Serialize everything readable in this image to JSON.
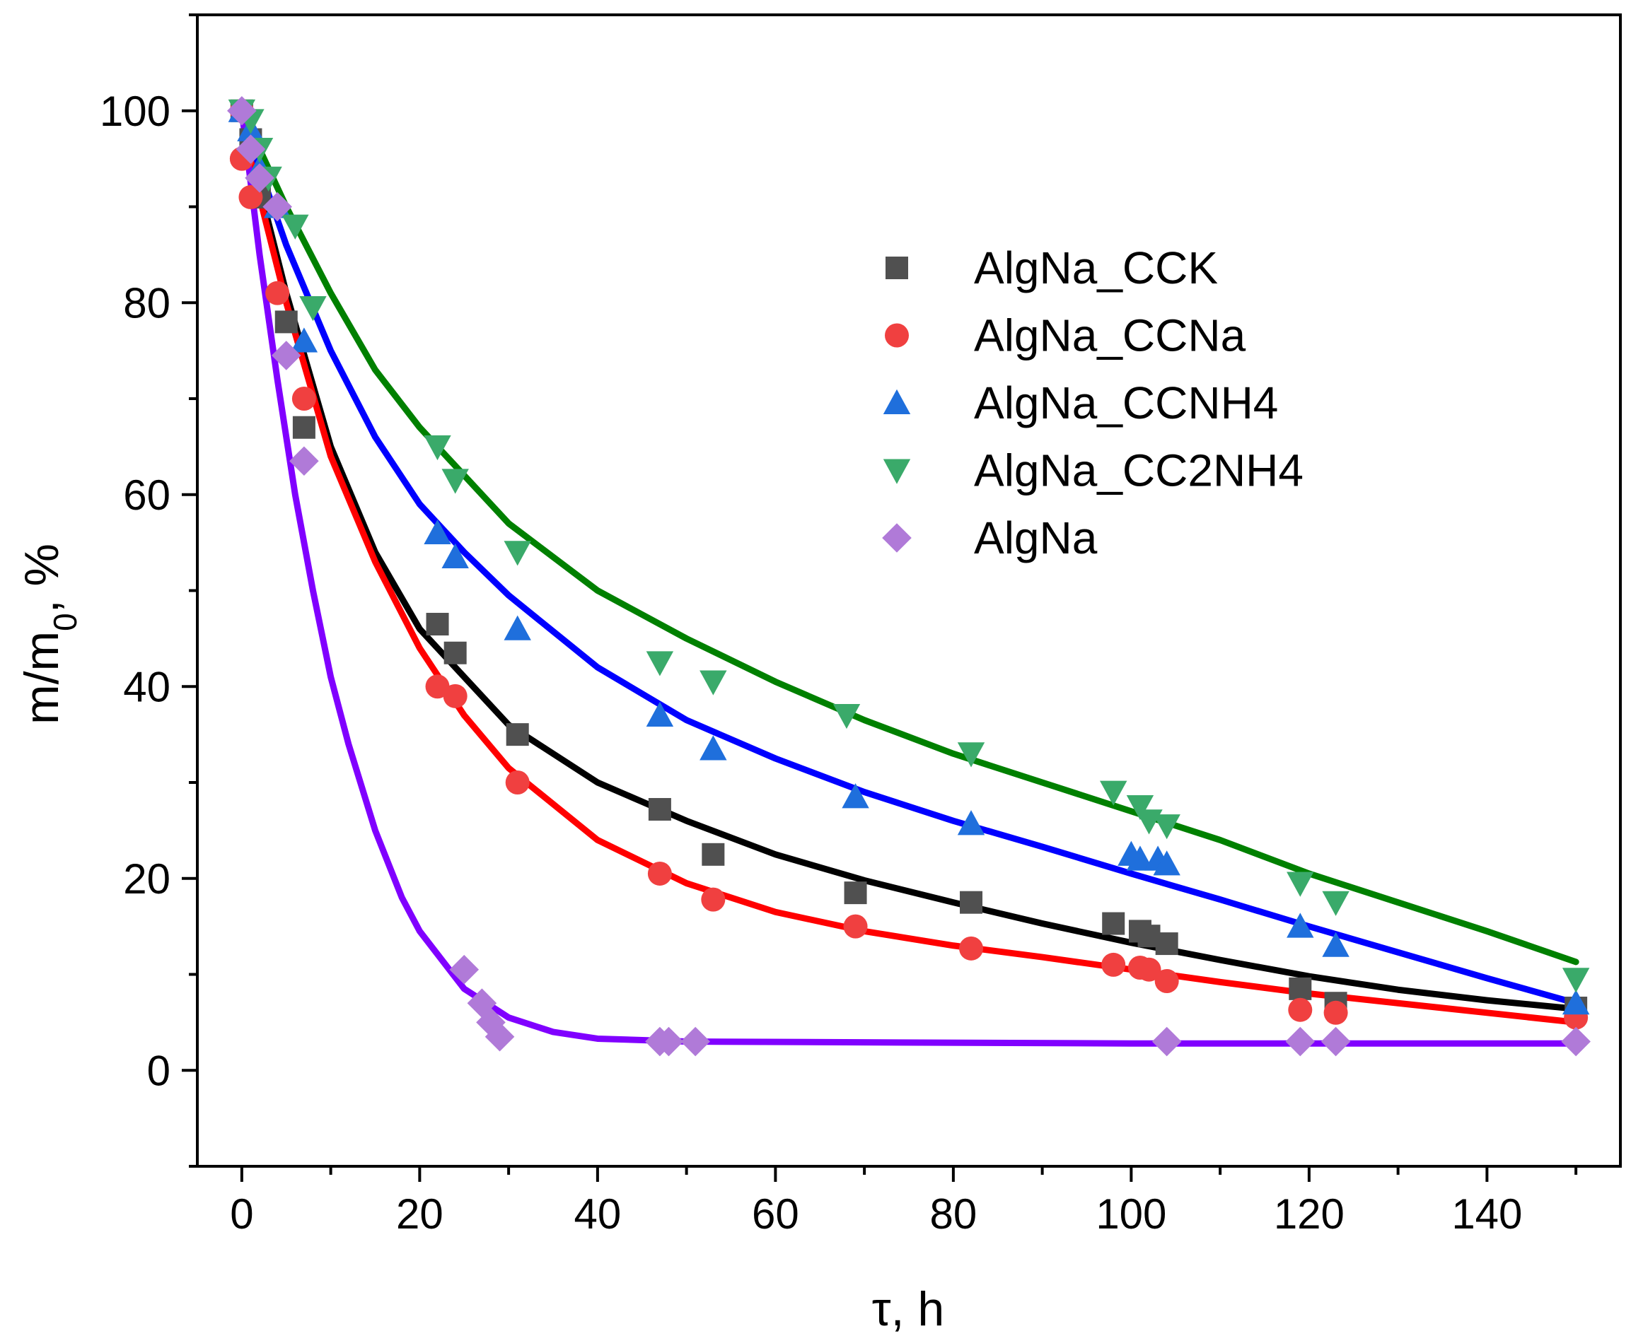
{
  "chart_data": {
    "type": "scatter",
    "title": "",
    "xlabel": "τ, h",
    "ylabel_main": "m/m",
    "ylabel_sub": "0",
    "ylabel_tail": ", %",
    "xlim": [
      -5,
      155
    ],
    "ylim": [
      -10,
      110
    ],
    "xticks": [
      0,
      20,
      40,
      60,
      80,
      100,
      120,
      140
    ],
    "yticks": [
      0,
      20,
      40,
      60,
      80,
      100
    ],
    "grid": false,
    "legend_position": "top-right",
    "series": [
      {
        "name": "AlgNa_CCK",
        "marker": "square",
        "color": "#505050",
        "fit_color": "#000000",
        "x": [
          0,
          1,
          2,
          5,
          7,
          22,
          24,
          31,
          47,
          53,
          69,
          82,
          98,
          101,
          102,
          104,
          119,
          123,
          150
        ],
        "y": [
          100,
          97,
          91,
          78,
          67,
          46.5,
          43.5,
          35,
          27.2,
          22.5,
          18.5,
          17.5,
          15.3,
          14.5,
          14,
          13.2,
          8.5,
          7,
          6.5
        ],
        "fit_x": [
          0,
          2,
          5,
          10,
          15,
          20,
          30,
          40,
          50,
          60,
          70,
          80,
          90,
          100,
          110,
          120,
          130,
          140,
          150
        ],
        "fit_y": [
          100,
          92,
          81,
          65,
          54,
          46,
          36,
          30,
          26,
          22.5,
          19.8,
          17.5,
          15.3,
          13.3,
          11.5,
          9.8,
          8.4,
          7.3,
          6.4
        ]
      },
      {
        "name": "AlgNa_CCNa",
        "marker": "circle",
        "color": "#f04040",
        "fit_color": "#ff0000",
        "x": [
          0,
          0,
          1,
          4,
          7,
          22,
          24,
          31,
          47,
          53,
          69,
          82,
          98,
          101,
          102,
          104,
          119,
          123,
          150
        ],
        "y": [
          100,
          95,
          91,
          81,
          70,
          40,
          39,
          30,
          20.5,
          17.8,
          15,
          12.7,
          11,
          10.7,
          10.5,
          9.3,
          6.3,
          6,
          5.5
        ],
        "fit_x": [
          0,
          2,
          5,
          10,
          15,
          20,
          25,
          30,
          40,
          50,
          60,
          70,
          80,
          90,
          100,
          110,
          120,
          130,
          140,
          150
        ],
        "fit_y": [
          100,
          91,
          80,
          64,
          53,
          44,
          37,
          31.5,
          24,
          19.5,
          16.5,
          14.5,
          13,
          11.8,
          10.5,
          9.2,
          8,
          7,
          6,
          5
        ]
      },
      {
        "name": "AlgNa_CCNH4",
        "marker": "triangle-up",
        "color": "#1f6fdc",
        "fit_color": "#0000ff",
        "x": [
          0,
          1,
          2,
          4,
          7,
          22,
          24,
          31,
          47,
          53,
          69,
          82,
          100,
          101,
          103,
          104,
          119,
          123,
          150
        ],
        "y": [
          100,
          98,
          94,
          90,
          76,
          56,
          53.5,
          46,
          37,
          33.5,
          28.5,
          25.7,
          22.5,
          22,
          22,
          21.5,
          15,
          13,
          7
        ],
        "fit_x": [
          0,
          2,
          5,
          10,
          15,
          20,
          25,
          30,
          40,
          50,
          60,
          70,
          80,
          90,
          100,
          110,
          120,
          130,
          140,
          150
        ],
        "fit_y": [
          100,
          94,
          86,
          75,
          66,
          59,
          54,
          49.5,
          42,
          36.5,
          32.5,
          29,
          26,
          23.3,
          20.5,
          17.8,
          15,
          12.3,
          9.6,
          7
        ]
      },
      {
        "name": "AlgNa_CC2NH4",
        "marker": "triangle-down",
        "color": "#3aaa6a",
        "fit_color": "#008000",
        "x": [
          0,
          1,
          2,
          3,
          6,
          8,
          22,
          24,
          31,
          47,
          53,
          68,
          82,
          98,
          101,
          102,
          104,
          119,
          123,
          150
        ],
        "y": [
          100,
          99,
          96,
          93,
          88,
          79.5,
          65,
          61.5,
          54,
          42.5,
          40.5,
          37,
          33,
          29,
          27.5,
          26,
          25.5,
          19.5,
          17.5,
          9.5
        ],
        "fit_x": [
          0,
          2,
          5,
          10,
          15,
          20,
          25,
          30,
          40,
          50,
          60,
          70,
          80,
          90,
          100,
          110,
          120,
          130,
          140,
          150
        ],
        "fit_y": [
          100,
          96,
          90,
          81,
          73,
          67,
          62,
          57,
          50,
          45,
          40.5,
          36.5,
          33,
          30,
          27,
          24,
          20.5,
          17.5,
          14.5,
          11.3
        ]
      },
      {
        "name": "AlgNa",
        "marker": "diamond",
        "color": "#b07ad8",
        "fit_color": "#8000ff",
        "x": [
          0,
          1,
          2,
          4,
          5,
          7,
          25,
          27,
          28,
          29,
          47,
          48,
          51,
          104,
          119,
          123,
          150
        ],
        "y": [
          100,
          96,
          93,
          90,
          74.5,
          63.5,
          10.5,
          7,
          5,
          3.5,
          3,
          3,
          3,
          3,
          3,
          3,
          3
        ],
        "fit_x": [
          0,
          2,
          4,
          6,
          8,
          10,
          12,
          15,
          18,
          20,
          25,
          30,
          35,
          40,
          50,
          100,
          150
        ],
        "fit_y": [
          100,
          85,
          72,
          60,
          50,
          41,
          34,
          25,
          18,
          14.5,
          8.5,
          5.5,
          4,
          3.3,
          3,
          2.8,
          2.8
        ]
      }
    ]
  }
}
